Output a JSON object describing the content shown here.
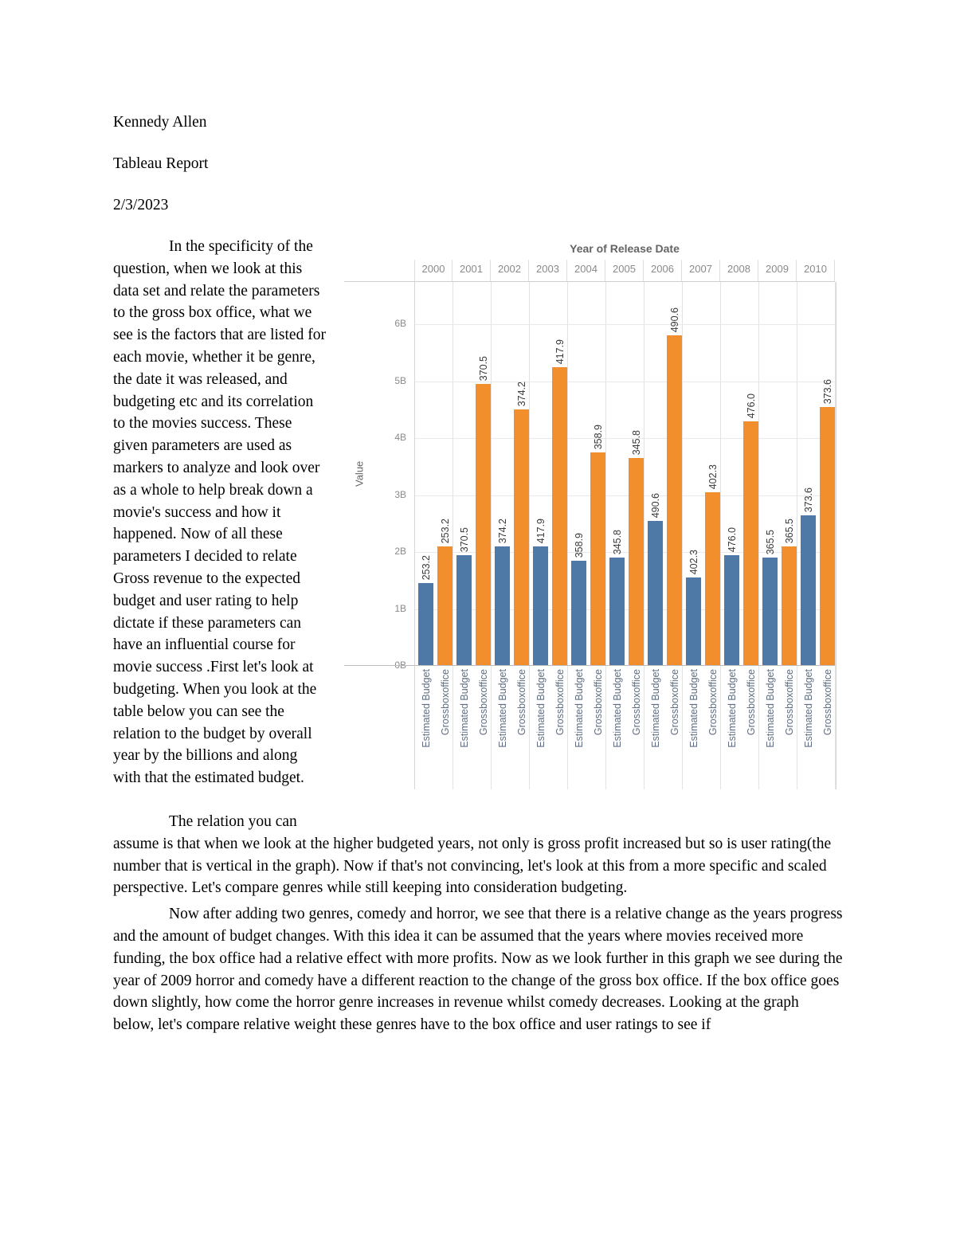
{
  "header": {
    "author": "Kennedy Allen",
    "title": "Tableau Report",
    "date": "2/3/2023"
  },
  "paragraphs": {
    "p1": "In the specificity of the question, when we look at this data set and relate the parameters to the gross box office, what we see is the factors that are listed for each movie, whether it be genre, the date it was released, and budgeting etc and its correlation to the movies success. These given parameters are used as markers to analyze and look over as a whole to help break down a movie's success and how it happened. Now of all these parameters I decided to relate Gross revenue to the expected budget and user rating to help dictate if these parameters can have an influential course for movie success .First let's look at budgeting. When you look at the table below you can see the relation to the budget by overall year by the billions and along with that the estimated budget.",
    "p2": "The relation you can assume is that when we look at the higher budgeted years, not only is gross profit increased but so is user rating(the number that is vertical in the graph). Now if that's not convincing, let's look at this from a more specific and scaled perspective. Let's compare genres while still keeping into consideration budgeting.",
    "p3": "Now after adding two genres, comedy and horror, we see that there is a relative change as the years progress and the amount of budget changes. With this idea it can be assumed that the years where movies received more funding, the box office had a relative effect with more profits. Now as we look further in this graph we see during the year of 2009 horror and comedy have a different reaction to the change of the gross box office. If the box office goes down slightly, how come the horror genre increases in revenue whilst comedy decreases. Looking at the graph below, let's compare relative weight these genres have to the box office and user ratings to see if"
  },
  "chart_data": {
    "type": "bar",
    "title": "Year of Release Date",
    "xlabel": "",
    "ylabel": "Value",
    "y_unit": "billions",
    "ylim": [
      0,
      6.74
    ],
    "ytick_labels": [
      "0B",
      "1B",
      "2B",
      "3B",
      "4B",
      "5B",
      "6B"
    ],
    "grid": true,
    "legend_position": "none",
    "categories": [
      "2000",
      "2001",
      "2002",
      "2003",
      "2004",
      "2005",
      "2006",
      "2007",
      "2008",
      "2009",
      "2010"
    ],
    "series": [
      {
        "name": "Estimated Budget",
        "color": "#4e79a7",
        "values_billions": [
          1.45,
          1.95,
          2.1,
          2.1,
          1.85,
          1.9,
          2.55,
          1.55,
          1.95,
          1.9,
          2.65
        ]
      },
      {
        "name": "Grossboxoffice",
        "color": "#f28e2b",
        "values_billions": [
          2.1,
          4.95,
          4.5,
          5.25,
          3.75,
          3.65,
          5.8,
          3.05,
          4.3,
          2.1,
          4.55
        ]
      }
    ],
    "bar_value_labels": [
      "253.2",
      "370.5",
      "374.2",
      "417.9",
      "358.9",
      "345.8",
      "490.6",
      "402.3",
      "476.0",
      "365.5",
      "373.6"
    ],
    "bar_value_labels_note": "same rotated label shown above both bars of each year"
  }
}
